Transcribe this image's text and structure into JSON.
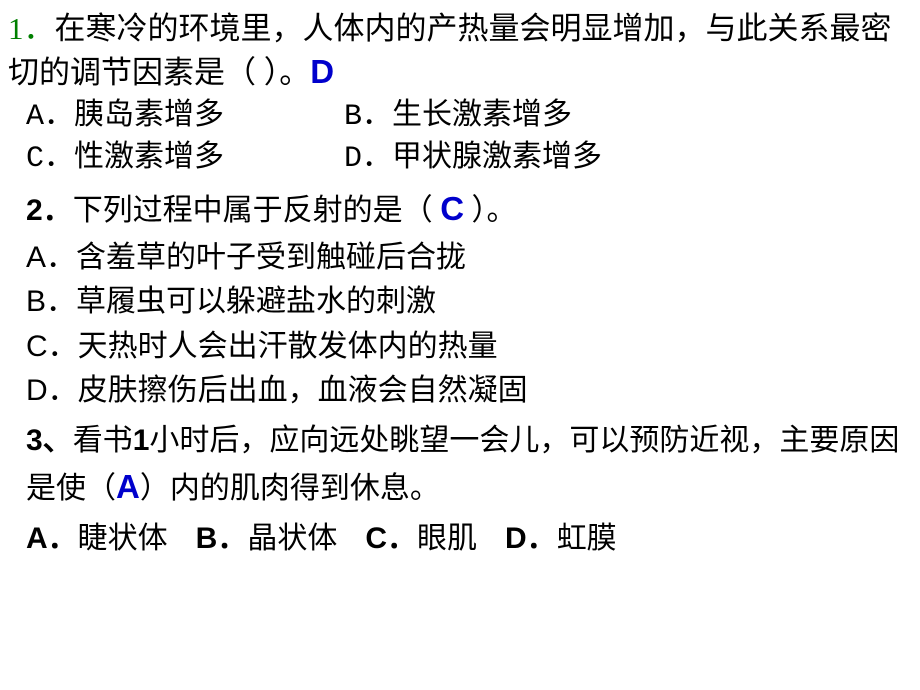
{
  "q1": {
    "number": "1．",
    "stem_part1": "在寒冷的环境里，人体内的产热量会明显增加，与此关系最密切的调节因素是（  ）。",
    "answer": "D",
    "options": {
      "a": {
        "label": "A．",
        "text": "胰岛素增多"
      },
      "b": {
        "label": "B．",
        "text": "生长激素增多"
      },
      "c": {
        "label": "C．",
        "text": "性激素增多"
      },
      "d": {
        "label": "D．",
        "text": "甲状腺激素增多"
      }
    }
  },
  "q2": {
    "number": "2．",
    "stem_before": "下列过程中属于反射的是（ ",
    "answer": "C",
    "stem_after": " ）。",
    "options": {
      "a": {
        "label": "A．",
        "text": "含羞草的叶子受到触碰后合拢"
      },
      "b": {
        "label": "B．",
        "text": "草履虫可以躲避盐水的刺激"
      },
      "c": {
        "label": "C．",
        "text": "天热时人会出汗散发体内的热量"
      },
      "d": {
        "label": "D．",
        "text": "皮肤擦伤后出血，血液会自然凝固"
      }
    }
  },
  "q3": {
    "number": "3、",
    "stem_p1": "看书",
    "stem_num": "1",
    "stem_p2": "小时后，应向远处眺望一会儿，可以预防近视，主要原因是使（",
    "answer": "A",
    "stem_p3": "）内的肌肉得到休息。",
    "options": {
      "a": {
        "label": "A．",
        "text": "睫状体"
      },
      "b": {
        "label": "B．",
        "text": "晶状体"
      },
      "c": {
        "label": "C．",
        "text": "眼肌"
      },
      "d": {
        "label": "D．",
        "text": "虹膜"
      }
    }
  },
  "style": {
    "answer_color": "#0000cc",
    "number_color_q1": "#008000",
    "text_color": "#000000",
    "bg_color": "#ffffff",
    "base_fontsize_pt": 22
  }
}
